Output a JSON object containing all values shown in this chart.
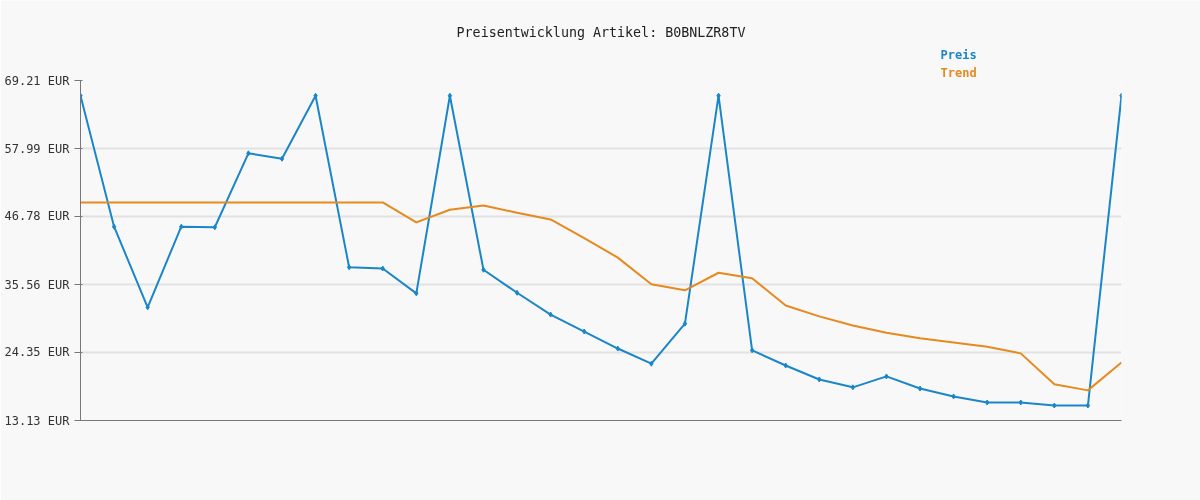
{
  "chart_data": {
    "type": "line",
    "title": "Preisentwicklung Artikel: B0BNLZR8TV",
    "categories": [
      null,
      null,
      null,
      null,
      null,
      null,
      null,
      null,
      null,
      null,
      null,
      null,
      null,
      null,
      null,
      null,
      null,
      null,
      null,
      null,
      null,
      null,
      null,
      null,
      null,
      null,
      null,
      null,
      null,
      null,
      null,
      null
    ],
    "series": [
      {
        "name": "Preis",
        "color": "#1a86c8",
        "marker": "diamond",
        "values": [
          66.7,
          45.1,
          31.8,
          45.1,
          45.0,
          57.2,
          56.3,
          66.7,
          38.4,
          38.2,
          34.1,
          66.7,
          38.0,
          34.2,
          30.6,
          27.8,
          25.0,
          22.5,
          29.1,
          66.7,
          24.7,
          22.2,
          19.9,
          18.6,
          20.4,
          18.4,
          17.1,
          16.1,
          16.1,
          15.6,
          15.6,
          66.7
        ]
      },
      {
        "name": "Trend",
        "color": "#e6891f",
        "marker": "none",
        "values": [
          49.1,
          49.1,
          49.1,
          49.1,
          49.1,
          49.1,
          49.1,
          49.1,
          49.1,
          49.1,
          45.8,
          47.9,
          48.6,
          47.4,
          46.3,
          43.2,
          40.0,
          35.6,
          34.6,
          37.5,
          36.6,
          32.1,
          30.3,
          28.8,
          27.6,
          26.7,
          26.0,
          25.3,
          24.2,
          19.1,
          18.1,
          22.7
        ]
      }
    ],
    "ylim": [
      13.13,
      69.21
    ],
    "yticks": [
      {
        "value": 13.13,
        "label": "13.13 EUR"
      },
      {
        "value": 24.35,
        "label": "24.35 EUR"
      },
      {
        "value": 35.56,
        "label": "35.56 EUR"
      },
      {
        "value": 46.78,
        "label": "46.78 EUR"
      },
      {
        "value": 57.99,
        "label": "57.99 EUR"
      },
      {
        "value": 69.21,
        "label": "69.21 EUR"
      }
    ],
    "tick_labels": "y",
    "grid": "y",
    "line_style": "solid"
  }
}
